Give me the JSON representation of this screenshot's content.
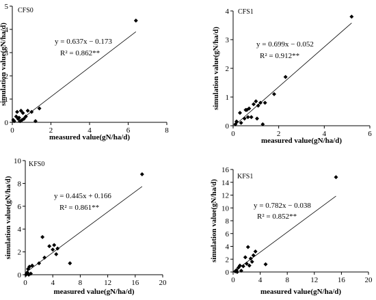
{
  "chart_data": [
    {
      "type": "scatter",
      "panel_label": "CFS0",
      "xlabel": "measured value(gN/ha/d)",
      "ylabel": "simulation value(gN/ha/d)",
      "xlim": [
        0,
        8
      ],
      "ylim": [
        0,
        5
      ],
      "xticks": [
        0,
        2,
        4,
        6,
        8
      ],
      "yticks": [
        0,
        1,
        2,
        3,
        4,
        5
      ],
      "equation": "y = 0.637x − 0.173",
      "r2": "R² = 0.862**",
      "fit": {
        "x": [
          0.3,
          6.4
        ],
        "y": [
          0.02,
          3.9
        ]
      },
      "x": [
        0.05,
        0.1,
        0.2,
        0.25,
        0.3,
        0.35,
        0.4,
        0.45,
        0.5,
        0.55,
        0.6,
        0.7,
        0.8,
        1.0,
        1.2,
        1.4,
        6.4
      ],
      "y": [
        0.1,
        0.05,
        0.25,
        0.45,
        0.15,
        0.2,
        0.05,
        0.5,
        0.1,
        0.4,
        0.15,
        0.25,
        0.5,
        0.45,
        0.05,
        0.6,
        4.38
      ]
    },
    {
      "type": "scatter",
      "panel_label": "CFS1",
      "xlabel": "measured value(gN/ha/d)",
      "ylabel": "simulation value(gN/ha/d)",
      "xlim": [
        0,
        6
      ],
      "ylim": [
        0,
        4
      ],
      "xticks": [
        0,
        2,
        4,
        6
      ],
      "yticks": [
        0,
        1,
        2,
        3,
        4
      ],
      "equation": "y = 0.699x − 0.052",
      "r2": "R² = 0.912**",
      "fit": {
        "x": [
          0.05,
          5.2
        ],
        "y": [
          0.0,
          3.58
        ]
      },
      "x": [
        0.1,
        0.15,
        0.3,
        0.35,
        0.5,
        0.55,
        0.6,
        0.65,
        0.7,
        0.8,
        0.9,
        1.0,
        1.05,
        1.1,
        1.2,
        1.3,
        1.4,
        1.8,
        2.3,
        5.2
      ],
      "y": [
        0.05,
        0.15,
        0.45,
        0.1,
        0.25,
        0.55,
        0.55,
        0.3,
        0.6,
        0.3,
        0.75,
        0.85,
        0.25,
        0.7,
        0.8,
        0.05,
        0.8,
        1.1,
        1.7,
        3.8
      ]
    },
    {
      "type": "scatter",
      "panel_label": "KFS0",
      "xlabel": "measured value(gN/ha/d)",
      "ylabel": "simulation value(gN/ha/d)",
      "xlim": [
        0,
        20
      ],
      "ylim": [
        0,
        10
      ],
      "xticks": [
        0,
        4,
        8,
        12,
        16,
        20
      ],
      "yticks": [
        0,
        2,
        4,
        6,
        8,
        10
      ],
      "equation": "y = 0.445x + 0.166",
      "r2": "R² = 0.861**",
      "fit": {
        "x": [
          0.2,
          17.0
        ],
        "y": [
          0.25,
          7.73
        ]
      },
      "x": [
        0.1,
        0.2,
        0.3,
        0.4,
        0.5,
        0.6,
        0.8,
        1.0,
        2.0,
        2.5,
        2.8,
        3.5,
        4.0,
        4.2,
        4.5,
        4.7,
        6.5,
        17.0
      ],
      "y": [
        0.0,
        0.1,
        0.2,
        0.5,
        0.0,
        0.7,
        0.1,
        0.8,
        1.0,
        3.3,
        1.5,
        2.5,
        2.2,
        2.6,
        1.8,
        2.3,
        1.0,
        8.8
      ]
    },
    {
      "type": "scatter",
      "panel_label": "KFS1",
      "xlabel": "measured value(gN/ha/d)",
      "ylabel": "simulation value(gN/ha/d)",
      "xlim": [
        0,
        20
      ],
      "ylim": [
        0,
        16
      ],
      "xticks": [
        0,
        4,
        8,
        12,
        16,
        20
      ],
      "yticks": [
        0,
        2,
        4,
        6,
        8,
        10,
        12,
        14,
        16
      ],
      "equation": "y = 0.782x − 0.038",
      "r2": "R² = 0.852**",
      "fit": {
        "x": [
          0.3,
          15.2
        ],
        "y": [
          0.2,
          11.85
        ]
      },
      "x": [
        0.3,
        0.5,
        0.6,
        0.8,
        1.0,
        1.2,
        1.5,
        1.8,
        2.0,
        2.2,
        2.4,
        2.6,
        2.8,
        3.0,
        3.3,
        4.8,
        15.2
      ],
      "y": [
        0.1,
        0.3,
        0.0,
        0.7,
        1.0,
        0.2,
        0.9,
        2.3,
        1.3,
        3.9,
        1.0,
        2.1,
        1.6,
        2.6,
        3.2,
        1.2,
        14.8
      ]
    }
  ]
}
